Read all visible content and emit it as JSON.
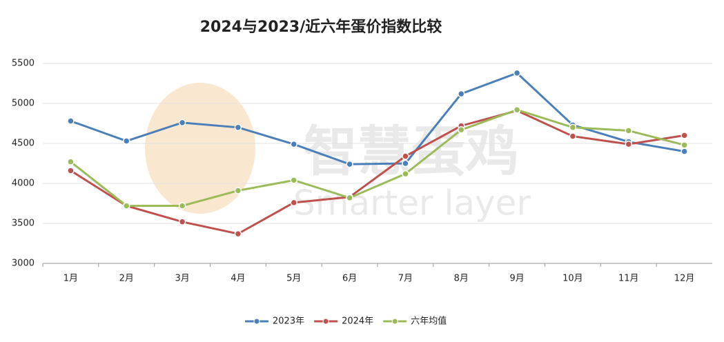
{
  "chart_data": {
    "type": "line",
    "title": "2024与2023/近六年蛋价指数比较",
    "watermark": [
      "智慧蛋鸡",
      "Smarter layer"
    ],
    "categories": [
      "1月",
      "2月",
      "3月",
      "4月",
      "5月",
      "6月",
      "7月",
      "8月",
      "9月",
      "10月",
      "11月",
      "12月"
    ],
    "series": [
      {
        "name": "2023年",
        "color": "#4a7fb9",
        "values": [
          4780,
          4530,
          4760,
          4700,
          4490,
          4240,
          4250,
          5120,
          5380,
          4730,
          4520,
          4400
        ]
      },
      {
        "name": "2024年",
        "color": "#c0504d",
        "values": [
          4160,
          3720,
          3520,
          3370,
          3760,
          3830,
          4340,
          4720,
          4910,
          4590,
          4490,
          4600
        ]
      },
      {
        "name": "六年均值",
        "color": "#9bbb59",
        "values": [
          4270,
          3720,
          3720,
          3910,
          4040,
          3820,
          4120,
          4670,
          4920,
          4700,
          4660,
          4480
        ]
      }
    ],
    "ylim": [
      3000,
      5500
    ],
    "yticks": [
      3000,
      3500,
      4000,
      4500,
      5000,
      5500
    ],
    "grid": true
  }
}
